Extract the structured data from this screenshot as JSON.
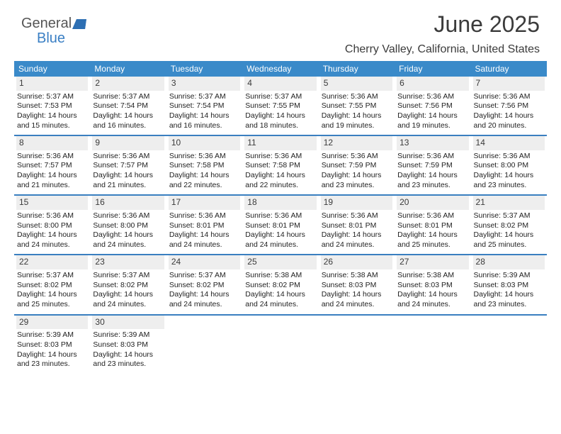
{
  "logo": {
    "part1": "General",
    "part2": "Blue"
  },
  "title": "June 2025",
  "location": "Cherry Valley, California, United States",
  "day_headers": [
    "Sunday",
    "Monday",
    "Tuesday",
    "Wednesday",
    "Thursday",
    "Friday",
    "Saturday"
  ],
  "colors": {
    "header_bg": "#3a8ac9",
    "header_text": "#ffffff",
    "daynum_bg": "#eeeeee",
    "border": "#3a7fc0",
    "body_text": "#222222",
    "title_text": "#3b3b3b",
    "logo_gray": "#555555",
    "logo_blue": "#3a7fc4"
  },
  "weeks": [
    [
      {
        "n": "1",
        "sr": "Sunrise: 5:37 AM",
        "ss": "Sunset: 7:53 PM",
        "d1": "Daylight: 14 hours",
        "d2": "and 15 minutes."
      },
      {
        "n": "2",
        "sr": "Sunrise: 5:37 AM",
        "ss": "Sunset: 7:54 PM",
        "d1": "Daylight: 14 hours",
        "d2": "and 16 minutes."
      },
      {
        "n": "3",
        "sr": "Sunrise: 5:37 AM",
        "ss": "Sunset: 7:54 PM",
        "d1": "Daylight: 14 hours",
        "d2": "and 16 minutes."
      },
      {
        "n": "4",
        "sr": "Sunrise: 5:37 AM",
        "ss": "Sunset: 7:55 PM",
        "d1": "Daylight: 14 hours",
        "d2": "and 18 minutes."
      },
      {
        "n": "5",
        "sr": "Sunrise: 5:36 AM",
        "ss": "Sunset: 7:55 PM",
        "d1": "Daylight: 14 hours",
        "d2": "and 19 minutes."
      },
      {
        "n": "6",
        "sr": "Sunrise: 5:36 AM",
        "ss": "Sunset: 7:56 PM",
        "d1": "Daylight: 14 hours",
        "d2": "and 19 minutes."
      },
      {
        "n": "7",
        "sr": "Sunrise: 5:36 AM",
        "ss": "Sunset: 7:56 PM",
        "d1": "Daylight: 14 hours",
        "d2": "and 20 minutes."
      }
    ],
    [
      {
        "n": "8",
        "sr": "Sunrise: 5:36 AM",
        "ss": "Sunset: 7:57 PM",
        "d1": "Daylight: 14 hours",
        "d2": "and 21 minutes."
      },
      {
        "n": "9",
        "sr": "Sunrise: 5:36 AM",
        "ss": "Sunset: 7:57 PM",
        "d1": "Daylight: 14 hours",
        "d2": "and 21 minutes."
      },
      {
        "n": "10",
        "sr": "Sunrise: 5:36 AM",
        "ss": "Sunset: 7:58 PM",
        "d1": "Daylight: 14 hours",
        "d2": "and 22 minutes."
      },
      {
        "n": "11",
        "sr": "Sunrise: 5:36 AM",
        "ss": "Sunset: 7:58 PM",
        "d1": "Daylight: 14 hours",
        "d2": "and 22 minutes."
      },
      {
        "n": "12",
        "sr": "Sunrise: 5:36 AM",
        "ss": "Sunset: 7:59 PM",
        "d1": "Daylight: 14 hours",
        "d2": "and 23 minutes."
      },
      {
        "n": "13",
        "sr": "Sunrise: 5:36 AM",
        "ss": "Sunset: 7:59 PM",
        "d1": "Daylight: 14 hours",
        "d2": "and 23 minutes."
      },
      {
        "n": "14",
        "sr": "Sunrise: 5:36 AM",
        "ss": "Sunset: 8:00 PM",
        "d1": "Daylight: 14 hours",
        "d2": "and 23 minutes."
      }
    ],
    [
      {
        "n": "15",
        "sr": "Sunrise: 5:36 AM",
        "ss": "Sunset: 8:00 PM",
        "d1": "Daylight: 14 hours",
        "d2": "and 24 minutes."
      },
      {
        "n": "16",
        "sr": "Sunrise: 5:36 AM",
        "ss": "Sunset: 8:00 PM",
        "d1": "Daylight: 14 hours",
        "d2": "and 24 minutes."
      },
      {
        "n": "17",
        "sr": "Sunrise: 5:36 AM",
        "ss": "Sunset: 8:01 PM",
        "d1": "Daylight: 14 hours",
        "d2": "and 24 minutes."
      },
      {
        "n": "18",
        "sr": "Sunrise: 5:36 AM",
        "ss": "Sunset: 8:01 PM",
        "d1": "Daylight: 14 hours",
        "d2": "and 24 minutes."
      },
      {
        "n": "19",
        "sr": "Sunrise: 5:36 AM",
        "ss": "Sunset: 8:01 PM",
        "d1": "Daylight: 14 hours",
        "d2": "and 24 minutes."
      },
      {
        "n": "20",
        "sr": "Sunrise: 5:36 AM",
        "ss": "Sunset: 8:01 PM",
        "d1": "Daylight: 14 hours",
        "d2": "and 25 minutes."
      },
      {
        "n": "21",
        "sr": "Sunrise: 5:37 AM",
        "ss": "Sunset: 8:02 PM",
        "d1": "Daylight: 14 hours",
        "d2": "and 25 minutes."
      }
    ],
    [
      {
        "n": "22",
        "sr": "Sunrise: 5:37 AM",
        "ss": "Sunset: 8:02 PM",
        "d1": "Daylight: 14 hours",
        "d2": "and 25 minutes."
      },
      {
        "n": "23",
        "sr": "Sunrise: 5:37 AM",
        "ss": "Sunset: 8:02 PM",
        "d1": "Daylight: 14 hours",
        "d2": "and 24 minutes."
      },
      {
        "n": "24",
        "sr": "Sunrise: 5:37 AM",
        "ss": "Sunset: 8:02 PM",
        "d1": "Daylight: 14 hours",
        "d2": "and 24 minutes."
      },
      {
        "n": "25",
        "sr": "Sunrise: 5:38 AM",
        "ss": "Sunset: 8:02 PM",
        "d1": "Daylight: 14 hours",
        "d2": "and 24 minutes."
      },
      {
        "n": "26",
        "sr": "Sunrise: 5:38 AM",
        "ss": "Sunset: 8:03 PM",
        "d1": "Daylight: 14 hours",
        "d2": "and 24 minutes."
      },
      {
        "n": "27",
        "sr": "Sunrise: 5:38 AM",
        "ss": "Sunset: 8:03 PM",
        "d1": "Daylight: 14 hours",
        "d2": "and 24 minutes."
      },
      {
        "n": "28",
        "sr": "Sunrise: 5:39 AM",
        "ss": "Sunset: 8:03 PM",
        "d1": "Daylight: 14 hours",
        "d2": "and 23 minutes."
      }
    ],
    [
      {
        "n": "29",
        "sr": "Sunrise: 5:39 AM",
        "ss": "Sunset: 8:03 PM",
        "d1": "Daylight: 14 hours",
        "d2": "and 23 minutes."
      },
      {
        "n": "30",
        "sr": "Sunrise: 5:39 AM",
        "ss": "Sunset: 8:03 PM",
        "d1": "Daylight: 14 hours",
        "d2": "and 23 minutes."
      },
      null,
      null,
      null,
      null,
      null
    ]
  ]
}
